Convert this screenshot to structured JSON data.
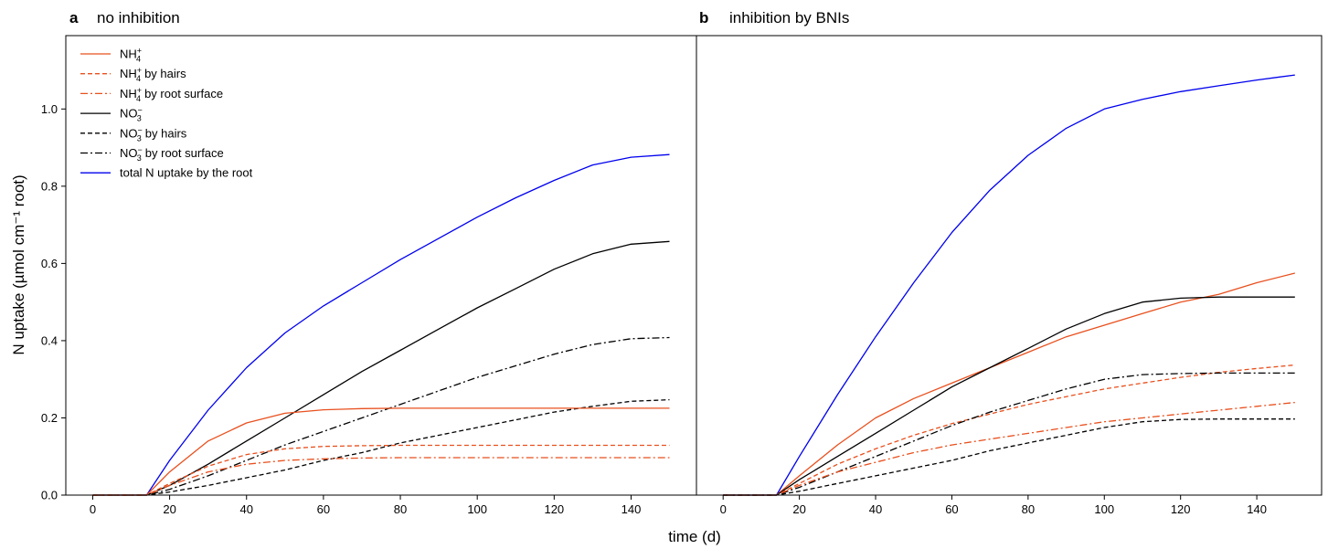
{
  "chart_data": {
    "type": "line",
    "xlabel": "time (d)",
    "ylabel": "N uptake (µmol cm⁻¹ root)",
    "xlim": [
      -7,
      157
    ],
    "ylim": [
      0,
      1.19
    ],
    "xticks": [
      0,
      20,
      40,
      60,
      80,
      100,
      120,
      140
    ],
    "yticks": [
      0.0,
      0.2,
      0.4,
      0.6,
      0.8,
      1.0
    ],
    "grid": false,
    "legend_placement": "top-left (panel a)",
    "legend": [
      {
        "key": "nh4",
        "main": "NH",
        "sub": "4",
        "sup": "+",
        "suffix": "",
        "color": "#e8501e",
        "dash": "solid"
      },
      {
        "key": "nh4_hairs",
        "main": "NH",
        "sub": "4",
        "sup": "+",
        "suffix": "by hairs",
        "color": "#e8501e",
        "dash": "dashed"
      },
      {
        "key": "nh4_surface",
        "main": "NH",
        "sub": "4",
        "sup": "+",
        "suffix": "by root surface",
        "color": "#e8501e",
        "dash": "dashdot"
      },
      {
        "key": "no3",
        "main": "NO",
        "sub": "3",
        "sup": "−",
        "suffix": "",
        "color": "#000000",
        "dash": "solid"
      },
      {
        "key": "no3_hairs",
        "main": "NO",
        "sub": "3",
        "sup": "−",
        "suffix": "by hairs",
        "color": "#000000",
        "dash": "dashed"
      },
      {
        "key": "no3_surface",
        "main": "NO",
        "sub": "3",
        "sup": "−",
        "suffix": "by root surface",
        "color": "#000000",
        "dash": "dashdot"
      },
      {
        "key": "total",
        "main": "total N uptake by the root",
        "sub": "",
        "sup": "",
        "suffix": "",
        "color": "#0000ee",
        "dash": "solid"
      }
    ],
    "panels": [
      {
        "letter": "a",
        "title": "no inhibition",
        "series": [
          {
            "key": "total",
            "x": [
              0,
              14,
              20,
              30,
              40,
              50,
              60,
              70,
              80,
              90,
              100,
              110,
              120,
              130,
              140,
              150
            ],
            "y": [
              0,
              0,
              0.09,
              0.22,
              0.33,
              0.42,
              0.49,
              0.55,
              0.61,
              0.665,
              0.72,
              0.77,
              0.815,
              0.855,
              0.875,
              0.882
            ]
          },
          {
            "key": "no3",
            "x": [
              0,
              14,
              20,
              30,
              40,
              50,
              60,
              70,
              80,
              90,
              100,
              110,
              120,
              130,
              140,
              150
            ],
            "y": [
              0,
              0,
              0.025,
              0.08,
              0.14,
              0.2,
              0.26,
              0.32,
              0.375,
              0.43,
              0.485,
              0.535,
              0.585,
              0.625,
              0.65,
              0.657
            ]
          },
          {
            "key": "no3_surface",
            "x": [
              0,
              14,
              20,
              30,
              40,
              50,
              60,
              70,
              80,
              90,
              100,
              110,
              120,
              130,
              140,
              150
            ],
            "y": [
              0,
              0,
              0.015,
              0.05,
              0.09,
              0.13,
              0.165,
              0.2,
              0.235,
              0.27,
              0.305,
              0.335,
              0.365,
              0.39,
              0.405,
              0.408
            ]
          },
          {
            "key": "no3_hairs",
            "x": [
              0,
              14,
              20,
              30,
              40,
              50,
              60,
              70,
              80,
              90,
              100,
              110,
              120,
              130,
              140,
              150
            ],
            "y": [
              0,
              0,
              0.008,
              0.025,
              0.045,
              0.065,
              0.09,
              0.11,
              0.135,
              0.155,
              0.175,
              0.195,
              0.215,
              0.23,
              0.243,
              0.247
            ]
          },
          {
            "key": "nh4",
            "x": [
              0,
              14,
              20,
              30,
              40,
              50,
              60,
              70,
              80,
              90,
              100,
              110,
              120,
              130,
              140,
              150
            ],
            "y": [
              0,
              0,
              0.06,
              0.14,
              0.187,
              0.212,
              0.221,
              0.224,
              0.225,
              0.225,
              0.225,
              0.225,
              0.225,
              0.225,
              0.225,
              0.225
            ]
          },
          {
            "key": "nh4_hairs",
            "x": [
              0,
              14,
              20,
              30,
              40,
              50,
              60,
              70,
              80,
              90,
              100,
              110,
              120,
              130,
              140,
              150
            ],
            "y": [
              0,
              0,
              0.03,
              0.075,
              0.105,
              0.12,
              0.126,
              0.128,
              0.129,
              0.129,
              0.129,
              0.129,
              0.129,
              0.129,
              0.129,
              0.129
            ]
          },
          {
            "key": "nh4_surface",
            "x": [
              0,
              14,
              20,
              30,
              40,
              50,
              60,
              70,
              80,
              90,
              100,
              110,
              120,
              130,
              140,
              150
            ],
            "y": [
              0,
              0,
              0.025,
              0.06,
              0.08,
              0.09,
              0.094,
              0.096,
              0.097,
              0.097,
              0.097,
              0.097,
              0.097,
              0.097,
              0.097,
              0.097
            ]
          }
        ]
      },
      {
        "letter": "b",
        "title": "inhibition by BNIs",
        "series": [
          {
            "key": "total",
            "x": [
              0,
              14,
              20,
              30,
              40,
              50,
              60,
              70,
              80,
              90,
              100,
              110,
              120,
              130,
              140,
              150
            ],
            "y": [
              0,
              0,
              0.1,
              0.26,
              0.41,
              0.55,
              0.68,
              0.79,
              0.88,
              0.95,
              1.0,
              1.025,
              1.045,
              1.06,
              1.075,
              1.088
            ]
          },
          {
            "key": "nh4",
            "x": [
              0,
              14,
              20,
              30,
              40,
              50,
              60,
              70,
              80,
              90,
              100,
              110,
              120,
              130,
              140,
              150
            ],
            "y": [
              0,
              0,
              0.05,
              0.13,
              0.2,
              0.25,
              0.29,
              0.33,
              0.37,
              0.41,
              0.44,
              0.47,
              0.5,
              0.52,
              0.55,
              0.575
            ]
          },
          {
            "key": "no3",
            "x": [
              0,
              14,
              20,
              30,
              40,
              50,
              60,
              70,
              80,
              90,
              100,
              110,
              120,
              130,
              140,
              150
            ],
            "y": [
              0,
              0,
              0.04,
              0.1,
              0.16,
              0.22,
              0.28,
              0.33,
              0.38,
              0.43,
              0.47,
              0.5,
              0.51,
              0.513,
              0.513,
              0.513
            ]
          },
          {
            "key": "nh4_hairs",
            "x": [
              0,
              14,
              20,
              30,
              40,
              50,
              60,
              70,
              80,
              90,
              100,
              110,
              120,
              130,
              140,
              150
            ],
            "y": [
              0,
              0,
              0.03,
              0.08,
              0.12,
              0.155,
              0.185,
              0.21,
              0.235,
              0.255,
              0.275,
              0.29,
              0.305,
              0.318,
              0.328,
              0.337
            ]
          },
          {
            "key": "no3_surface",
            "x": [
              0,
              14,
              20,
              30,
              40,
              50,
              60,
              70,
              80,
              90,
              100,
              110,
              120,
              130,
              140,
              150
            ],
            "y": [
              0,
              0,
              0.02,
              0.06,
              0.1,
              0.14,
              0.18,
              0.215,
              0.245,
              0.275,
              0.3,
              0.312,
              0.315,
              0.316,
              0.316,
              0.316
            ]
          },
          {
            "key": "nh4_surface",
            "x": [
              0,
              14,
              20,
              30,
              40,
              50,
              60,
              70,
              80,
              90,
              100,
              110,
              120,
              130,
              140,
              150
            ],
            "y": [
              0,
              0,
              0.025,
              0.06,
              0.085,
              0.11,
              0.13,
              0.145,
              0.16,
              0.175,
              0.19,
              0.2,
              0.21,
              0.22,
              0.23,
              0.24
            ]
          },
          {
            "key": "no3_hairs",
            "x": [
              0,
              14,
              20,
              30,
              40,
              50,
              60,
              70,
              80,
              90,
              100,
              110,
              120,
              130,
              140,
              150
            ],
            "y": [
              0,
              0,
              0.01,
              0.03,
              0.05,
              0.07,
              0.09,
              0.115,
              0.135,
              0.155,
              0.175,
              0.19,
              0.196,
              0.197,
              0.197,
              0.197
            ]
          }
        ]
      }
    ]
  }
}
